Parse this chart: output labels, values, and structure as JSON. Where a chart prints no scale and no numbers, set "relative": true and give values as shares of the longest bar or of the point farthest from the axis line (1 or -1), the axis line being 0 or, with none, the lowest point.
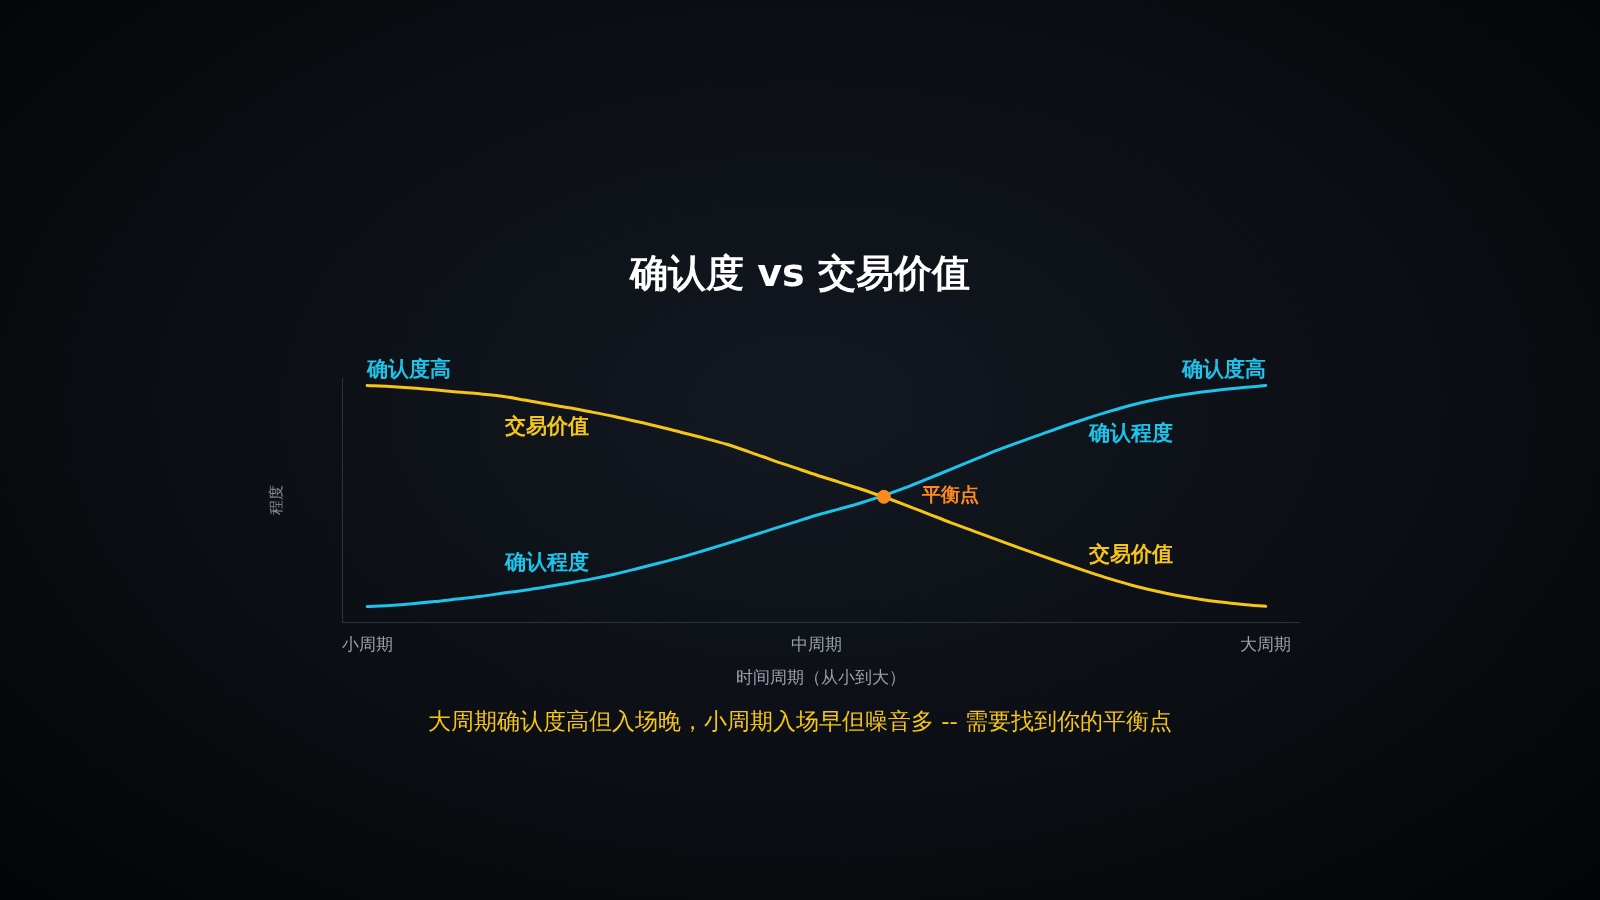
{
  "chart_data": {
    "type": "line",
    "title": "确认度 vs 交易价值",
    "xlabel": "时间周期（从小到大）",
    "ylabel": "程度",
    "relative": true,
    "legend": false,
    "tick_labels": "x",
    "categories": [
      "小周期",
      null,
      null,
      null,
      null,
      null,
      null,
      null,
      null,
      null,
      null,
      null,
      null,
      null,
      null,
      null,
      null,
      null,
      null,
      null,
      "中周期",
      null,
      null,
      null,
      null,
      null,
      null,
      null,
      null,
      null,
      null,
      null,
      null,
      null,
      null,
      null,
      null,
      null,
      null,
      null,
      "大周期"
    ],
    "series": [
      {
        "name": "交易价值",
        "color": "#f5c518",
        "values": [
          1.0,
          0.996,
          0.99,
          0.982,
          0.973,
          0.965,
          0.955,
          0.939,
          0.922,
          0.906,
          0.888,
          0.869,
          0.848,
          0.826,
          0.802,
          0.778,
          0.752,
          0.72,
          0.686,
          0.654,
          0.622,
          0.592,
          0.562,
          0.529,
          0.494,
          0.457,
          0.42,
          0.385,
          0.35,
          0.315,
          0.281,
          0.248,
          0.216,
          0.185,
          0.157,
          0.134,
          0.114,
          0.098,
          0.085,
          0.075,
          0.067
        ]
      },
      {
        "name": "确认程度",
        "color": "#1ec3ea",
        "values": [
          0.066,
          0.071,
          0.078,
          0.087,
          0.098,
          0.109,
          0.122,
          0.135,
          0.15,
          0.166,
          0.183,
          0.203,
          0.226,
          0.25,
          0.275,
          0.303,
          0.332,
          0.362,
          0.392,
          0.422,
          0.452,
          0.478,
          0.505,
          0.536,
          0.57,
          0.608,
          0.647,
          0.686,
          0.725,
          0.76,
          0.794,
          0.828,
          0.86,
          0.89,
          0.917,
          0.939,
          0.957,
          0.971,
          0.982,
          0.992,
          1.0
        ]
      },
      {
        "name": "平衡点",
        "type": "scatter",
        "marker": "circle",
        "color": "#ff8a1c",
        "values": [
          null,
          null,
          null,
          null,
          null,
          null,
          null,
          null,
          null,
          null,
          null,
          null,
          null,
          null,
          null,
          null,
          null,
          null,
          null,
          null,
          null,
          null,
          null,
          0.53,
          null,
          null,
          null,
          null,
          null,
          null,
          null,
          null,
          null,
          null,
          null,
          null,
          null,
          null,
          null,
          null,
          null
        ]
      }
    ],
    "annotations": [
      {
        "text": "确认度高",
        "x": "小周期",
        "y": 1.0
      },
      {
        "text": "确认度高",
        "x": "大周期",
        "y": 1.0
      },
      "大周期确认度高但入场晚，小周期入场早但噪音多 -- 需要找到你的平衡点"
    ]
  }
}
